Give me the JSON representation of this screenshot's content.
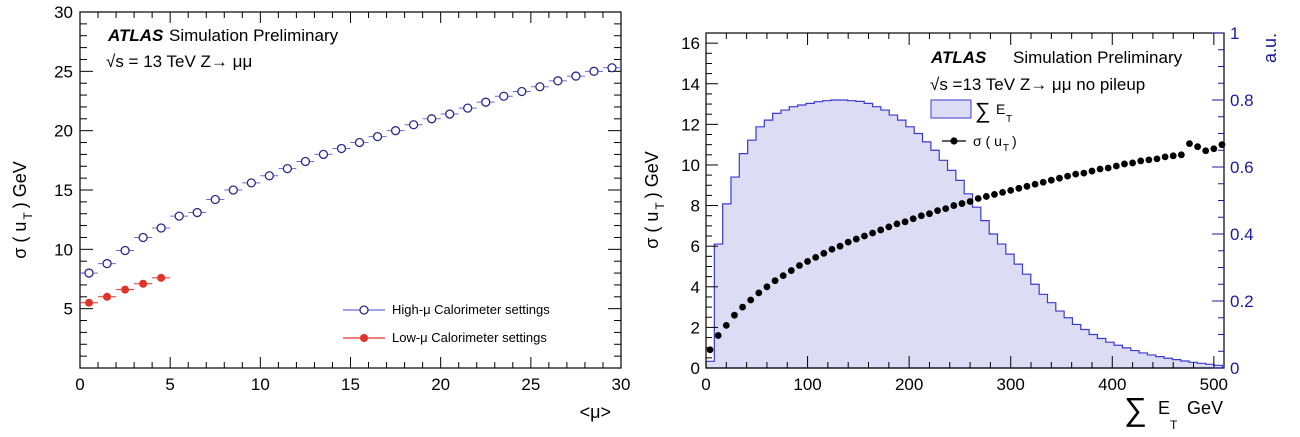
{
  "chart_data": [
    {
      "type": "scatter",
      "ylabel": "σ ( u_T ) GeV",
      "ylabel_main": "σ ( u",
      "ylabel_sub": "T",
      "ylabel_unit": ") GeV",
      "xlabel": "<μ>",
      "xlim": [
        0,
        30
      ],
      "ylim": [
        0,
        30
      ],
      "xticks": [
        0,
        5,
        10,
        15,
        20,
        25,
        30
      ],
      "yticks": [
        5,
        10,
        15,
        20,
        25,
        30
      ],
      "annotations": {
        "atlas": "ATLAS",
        "tag": "Simulation Preliminary",
        "energy": "√s = 13 TeV Z→ μμ"
      },
      "legend_position": "bottom-right",
      "series": [
        {
          "name": "High-μ Calorimeter settings",
          "marker": "open-circle",
          "color": "#2a2a8a",
          "line_color": "#6a6ad8",
          "x": [
            0.5,
            1.5,
            2.5,
            3.5,
            4.5,
            5.5,
            6.5,
            7.5,
            8.5,
            9.5,
            10.5,
            11.5,
            12.5,
            13.5,
            14.5,
            15.5,
            16.5,
            17.5,
            18.5,
            19.5,
            20.5,
            21.5,
            22.5,
            23.5,
            24.5,
            25.5,
            26.5,
            27.5,
            28.5,
            29.5
          ],
          "y": [
            8.0,
            8.8,
            9.9,
            11.0,
            11.8,
            12.8,
            13.1,
            14.2,
            15.0,
            15.6,
            16.2,
            16.8,
            17.4,
            18.0,
            18.5,
            19.0,
            19.5,
            20.0,
            20.5,
            21.0,
            21.4,
            21.9,
            22.4,
            22.9,
            23.3,
            23.7,
            24.2,
            24.6,
            25.0,
            25.3
          ]
        },
        {
          "name": "Low-μ Calorimeter settings",
          "marker": "filled-circle",
          "color": "#e0332a",
          "line_color": "#e0332a",
          "x": [
            0.5,
            1.5,
            2.5,
            3.5,
            4.5
          ],
          "y": [
            5.5,
            6.0,
            6.6,
            7.1,
            7.6
          ]
        }
      ]
    },
    {
      "type": "scatter",
      "ylabel": "σ ( u_T ) GeV",
      "ylabel_main": "σ ( u",
      "ylabel_sub": "T",
      "ylabel_unit": ") GeV",
      "y2label": "a.u.",
      "xlabel": "∑ E_T GeV",
      "xlabel_sum": "∑",
      "xlabel_main": "E",
      "xlabel_sub": "T",
      "xlabel_unit": "GeV",
      "xlim": [
        0,
        510
      ],
      "ylim": [
        0,
        16.5
      ],
      "y2lim": [
        0,
        1.0
      ],
      "xticks": [
        0,
        100,
        200,
        300,
        400,
        500
      ],
      "yticks": [
        0,
        2,
        4,
        6,
        8,
        10,
        12,
        14,
        16
      ],
      "y2ticks": [
        0,
        0.2,
        0.4,
        0.6,
        0.8,
        1
      ],
      "annotations": {
        "atlas": "ATLAS",
        "tag": "Simulation Preliminary",
        "energy": "√s =13 TeV Z→ μμ no pileup"
      },
      "legend_position": "top-right",
      "legend": {
        "hist_sum": "∑",
        "hist_main": "E",
        "hist_sub": "T",
        "points_main": "σ ( u",
        "points_sub": "T",
        "points_end": ")"
      },
      "hist_color": "#3a3ad0",
      "hist_fill": "#dcdcf5",
      "point_color": "#000000",
      "histogram": {
        "name": "∑ E_T",
        "bin_width": 8.2,
        "x_start": 0,
        "values": [
          0.02,
          0.37,
          0.49,
          0.57,
          0.64,
          0.68,
          0.72,
          0.74,
          0.76,
          0.77,
          0.78,
          0.785,
          0.79,
          0.795,
          0.798,
          0.8,
          0.8,
          0.798,
          0.796,
          0.79,
          0.78,
          0.77,
          0.755,
          0.74,
          0.72,
          0.7,
          0.675,
          0.65,
          0.62,
          0.59,
          0.56,
          0.52,
          0.48,
          0.44,
          0.4,
          0.37,
          0.34,
          0.31,
          0.28,
          0.25,
          0.22,
          0.195,
          0.17,
          0.15,
          0.13,
          0.115,
          0.1,
          0.088,
          0.077,
          0.068,
          0.06,
          0.052,
          0.045,
          0.039,
          0.034,
          0.029,
          0.025,
          0.021,
          0.017,
          0.014,
          0.011,
          0.008
        ]
      },
      "points": {
        "name": "σ ( u_T )",
        "x": [
          4,
          12,
          20,
          28,
          36,
          44,
          52,
          60,
          68,
          76,
          84,
          92,
          100,
          108,
          116,
          124,
          132,
          140,
          148,
          156,
          164,
          172,
          180,
          188,
          196,
          204,
          212,
          220,
          228,
          236,
          244,
          252,
          260,
          268,
          276,
          284,
          292,
          300,
          308,
          316,
          324,
          332,
          340,
          348,
          356,
          364,
          372,
          380,
          388,
          396,
          404,
          412,
          420,
          428,
          436,
          444,
          452,
          460,
          468,
          476,
          484,
          492,
          500,
          508
        ],
        "y": [
          0.9,
          1.6,
          2.1,
          2.6,
          3.0,
          3.35,
          3.7,
          4.0,
          4.3,
          4.55,
          4.8,
          5.05,
          5.25,
          5.45,
          5.65,
          5.85,
          6.0,
          6.2,
          6.35,
          6.5,
          6.65,
          6.8,
          6.95,
          7.1,
          7.2,
          7.35,
          7.5,
          7.6,
          7.75,
          7.85,
          8.0,
          8.1,
          8.2,
          8.35,
          8.45,
          8.55,
          8.65,
          8.75,
          8.85,
          8.95,
          9.05,
          9.15,
          9.25,
          9.35,
          9.45,
          9.55,
          9.6,
          9.7,
          9.8,
          9.85,
          9.95,
          10.05,
          10.1,
          10.2,
          10.25,
          10.3,
          10.4,
          10.45,
          10.5,
          11.05,
          10.9,
          10.7,
          10.8,
          11.0
        ]
      }
    }
  ]
}
